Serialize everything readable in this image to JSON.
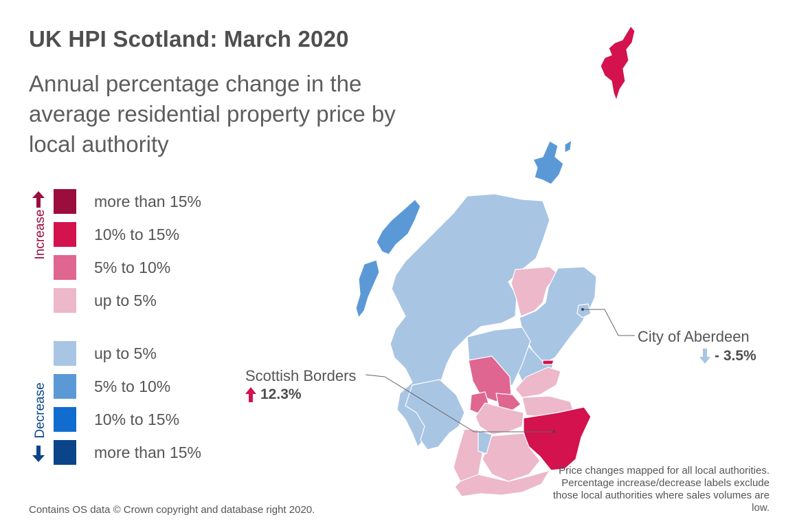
{
  "title": "UK HPI Scotland: March 2020",
  "subtitle": "Annual percentage change in the average residential property price by local authority",
  "legend": {
    "increase_label": "Increase",
    "decrease_label": "Decrease",
    "items": [
      {
        "label": "more than 15%",
        "color": "#9b0d3c",
        "group": "increase"
      },
      {
        "label": "10% to 15%",
        "color": "#d3124e",
        "group": "increase"
      },
      {
        "label": "5% to 10%",
        "color": "#df6690",
        "group": "increase"
      },
      {
        "label": "up to 5%",
        "color": "#ecb8ca",
        "group": "increase"
      },
      {
        "label": "up to 5%",
        "color": "#a9c5e4",
        "group": "decrease"
      },
      {
        "label": "5% to 10%",
        "color": "#5b99d6",
        "group": "decrease"
      },
      {
        "label": "10% to 15%",
        "color": "#116ccf",
        "group": "decrease"
      },
      {
        "label": "more than 15%",
        "color": "#0c4489",
        "group": "decrease"
      }
    ]
  },
  "callouts": {
    "aberdeen": {
      "name": "City of Aberdeen",
      "value": "- 3.5%",
      "direction": "decrease"
    },
    "borders": {
      "name": "Scottish Borders",
      "value": "12.3%",
      "direction": "increase"
    }
  },
  "footer": {
    "source": "Contains OS data © Crown copyright and database right 2020.",
    "note": "Price changes mapped for all local authorities. Percentage increase/decrease labels exclude those local authorities where sales volumes are low."
  },
  "colors": {
    "increase_arrow": "#9b0d3c",
    "decrease_arrow": "#0c4489",
    "callout_increase": "#d3124e",
    "callout_decrease": "#a9c5e4",
    "border": "#ffffff"
  }
}
